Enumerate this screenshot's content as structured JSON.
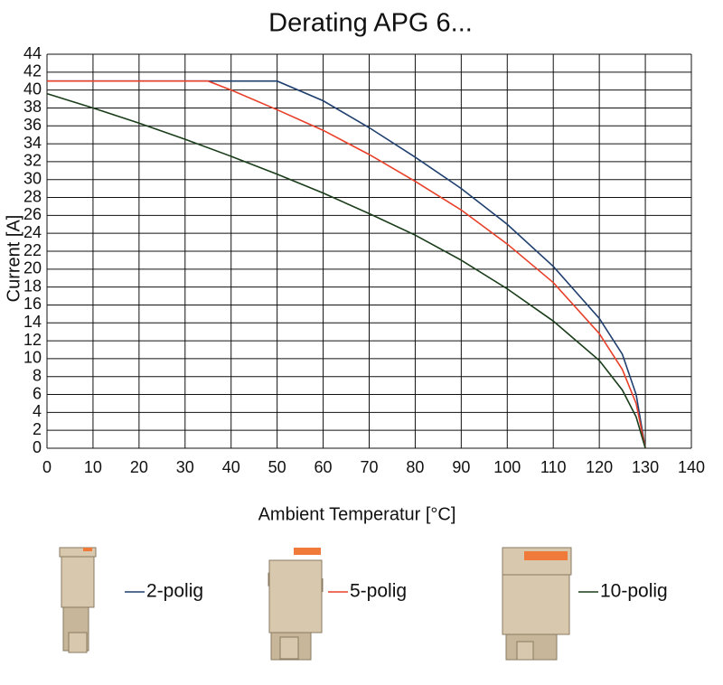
{
  "chart_data": {
    "type": "line",
    "title": "Derating APG 6...",
    "x_label": "Ambient Temperatur [°C]",
    "y_label": "Current [A]",
    "xlim": [
      0,
      140
    ],
    "xticks": [
      0,
      10,
      20,
      30,
      40,
      50,
      60,
      70,
      80,
      90,
      100,
      110,
      120,
      130,
      140
    ],
    "ylim": [
      0,
      44
    ],
    "yticks": [
      0,
      2,
      4,
      6,
      8,
      10,
      12,
      14,
      16,
      18,
      20,
      22,
      24,
      26,
      28,
      30,
      32,
      34,
      36,
      38,
      40,
      42,
      44
    ],
    "grid": true,
    "series": [
      {
        "name": "2-polig",
        "color": "#1f3f6e",
        "x": [
          0,
          50,
          60,
          70,
          80,
          90,
          100,
          110,
          120,
          125,
          128,
          130
        ],
        "values": [
          41,
          41,
          38.8,
          35.8,
          32.5,
          29,
          25,
          20.3,
          14.5,
          10.5,
          6,
          0
        ]
      },
      {
        "name": "5-polig",
        "color": "#e8402a",
        "x": [
          0,
          35,
          40,
          50,
          60,
          70,
          80,
          90,
          100,
          110,
          120,
          125,
          128,
          130
        ],
        "values": [
          41,
          41,
          40,
          37.8,
          35.5,
          32.8,
          29.8,
          26.6,
          22.8,
          18.5,
          12.8,
          8.8,
          5,
          0
        ]
      },
      {
        "name": "10-polig",
        "color": "#1a3d1a",
        "x": [
          0,
          10,
          20,
          30,
          40,
          50,
          60,
          70,
          80,
          90,
          100,
          110,
          120,
          125,
          128,
          130
        ],
        "values": [
          39.6,
          38,
          36.3,
          34.5,
          32.6,
          30.6,
          28.5,
          26.2,
          23.8,
          21,
          17.8,
          14.2,
          9.8,
          6.5,
          3.5,
          0
        ]
      }
    ]
  }
}
